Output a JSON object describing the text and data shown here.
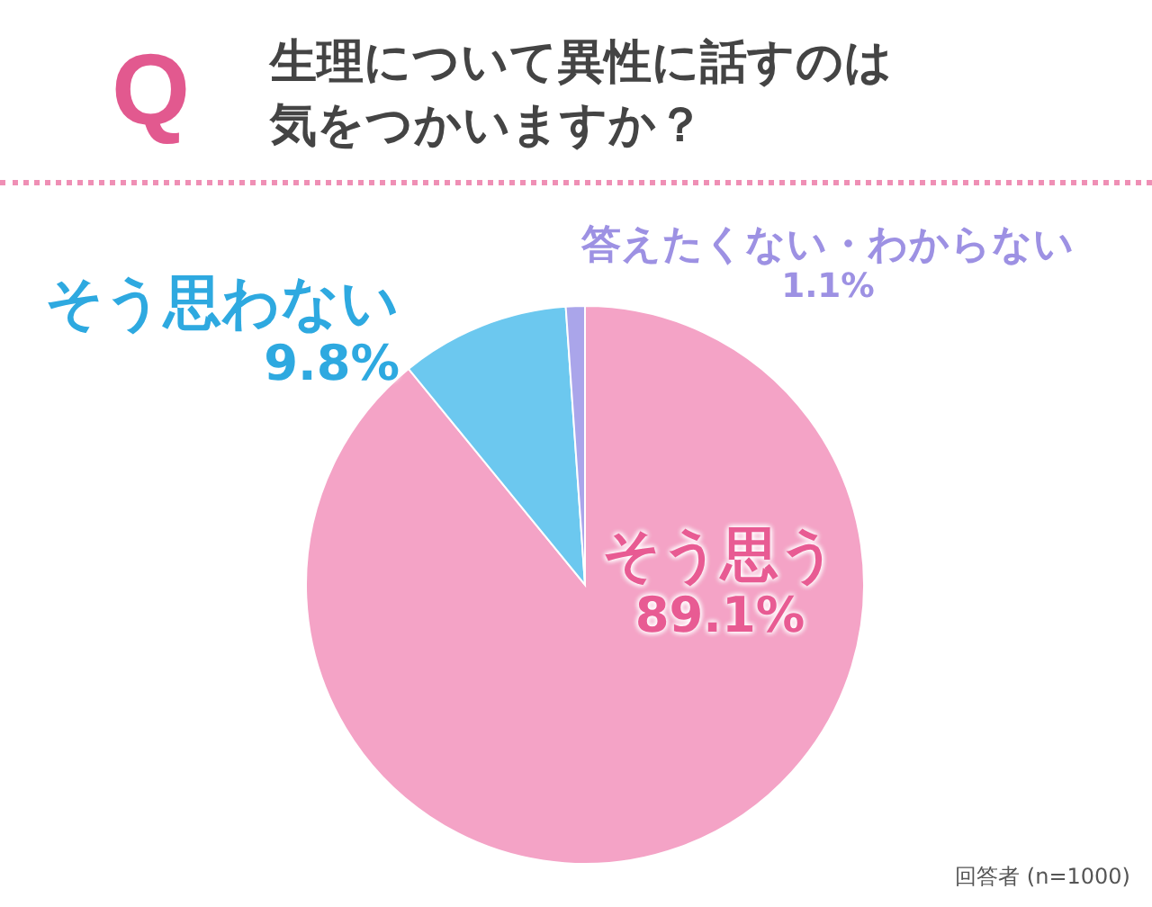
{
  "chart_data": {
    "type": "pie",
    "title": "生理について異性に話すのは気をつかいますか？",
    "categories": [
      "そう思う",
      "そう思わない",
      "答えたくない・わからない"
    ],
    "values": [
      89.1,
      9.8,
      1.1
    ],
    "value_labels": [
      "89.1%",
      "9.8%",
      "1.1%"
    ],
    "colors": [
      "#f4a3c6",
      "#6cc8ef",
      "#aaa5ea"
    ],
    "annotations": [
      "Q",
      "回答者 (n=1000)"
    ]
  }
}
